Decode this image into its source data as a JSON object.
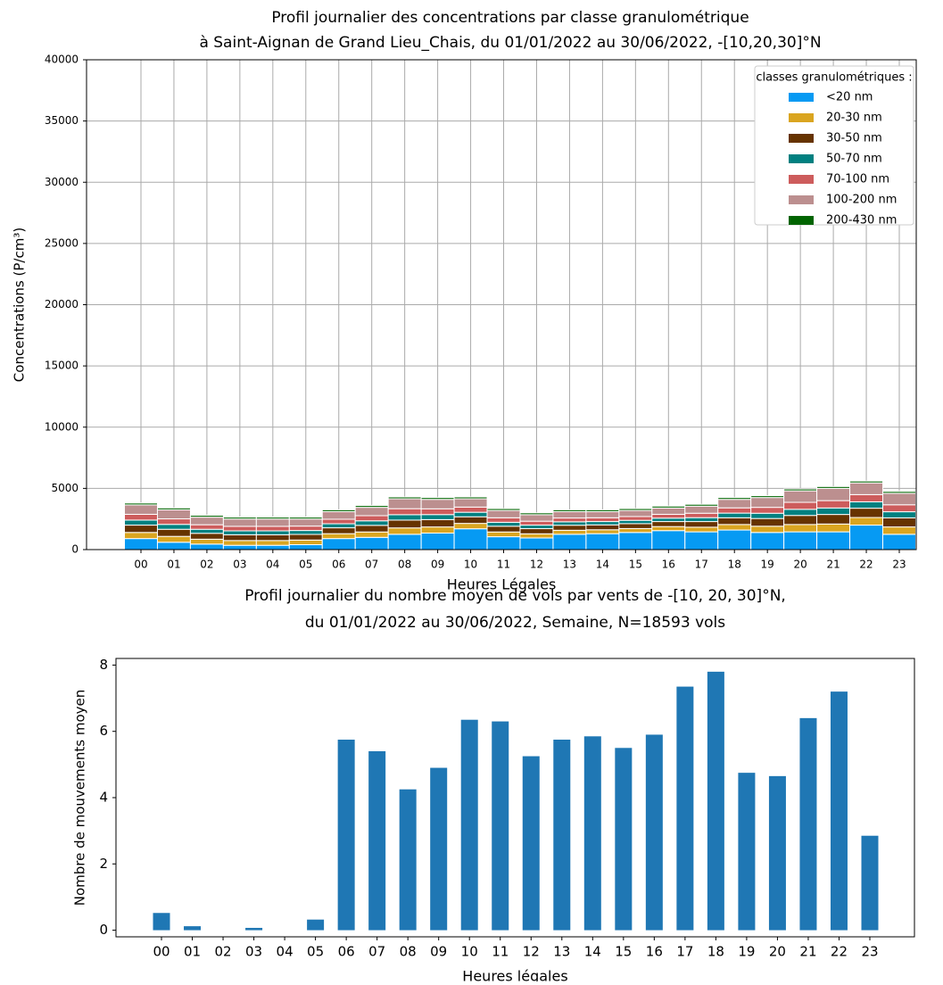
{
  "chart_data": [
    {
      "type": "stacked-bar",
      "title": [
        "Profil journalier des concentrations par classe granulométrique",
        "à Saint-Aignan de Grand Lieu_Chais, du 01/01/2022 au 30/06/2022, -[10,20,30]°N"
      ],
      "x_label": "Heures Légales",
      "y_label": "Concentrations (P/cm³)",
      "categories": [
        "00",
        "01",
        "02",
        "03",
        "04",
        "05",
        "06",
        "07",
        "08",
        "09",
        "10",
        "11",
        "12",
        "13",
        "14",
        "15",
        "16",
        "17",
        "18",
        "19",
        "20",
        "21",
        "22",
        "23"
      ],
      "legend_title": "classes granulométriques :",
      "legend": "upper right",
      "grid": true,
      "ylim": [
        0,
        40000
      ],
      "yticks": [
        0,
        5000,
        10000,
        15000,
        20000,
        25000,
        30000,
        35000,
        40000
      ],
      "series": [
        {
          "name": "<20 nm",
          "color": "#069af3",
          "values": [
            900,
            600,
            450,
            350,
            350,
            400,
            900,
            1000,
            1250,
            1350,
            1700,
            1050,
            950,
            1250,
            1300,
            1400,
            1550,
            1450,
            1600,
            1400,
            1450,
            1450,
            2000,
            1250
          ]
        },
        {
          "name": "20-30 nm",
          "color": "#daa520",
          "values": [
            500,
            480,
            400,
            390,
            390,
            380,
            400,
            440,
            520,
            500,
            440,
            390,
            340,
            330,
            320,
            320,
            330,
            380,
            450,
            510,
            600,
            640,
            620,
            600
          ]
        },
        {
          "name": "30-50 nm",
          "color": "#663300",
          "values": [
            600,
            580,
            480,
            470,
            470,
            460,
            480,
            540,
            640,
            600,
            540,
            470,
            420,
            410,
            400,
            400,
            410,
            460,
            550,
            630,
            740,
            780,
            760,
            740
          ]
        },
        {
          "name": "50-70 nm",
          "color": "#008080",
          "values": [
            410,
            400,
            330,
            320,
            320,
            320,
            330,
            370,
            440,
            410,
            370,
            320,
            290,
            280,
            270,
            270,
            280,
            320,
            380,
            430,
            500,
            530,
            520,
            500
          ]
        },
        {
          "name": "70-100 nm",
          "color": "#cd5c5c",
          "values": [
            470,
            450,
            370,
            370,
            370,
            360,
            370,
            420,
            490,
            470,
            420,
            370,
            320,
            310,
            310,
            310,
            310,
            360,
            430,
            480,
            570,
            600,
            590,
            570
          ]
        },
        {
          "name": "100-200 nm",
          "color": "#bc8f8f",
          "values": [
            770,
            740,
            620,
            600,
            600,
            580,
            620,
            680,
            810,
            770,
            680,
            600,
            530,
            520,
            500,
            500,
            520,
            580,
            690,
            800,
            940,
            1000,
            960,
            940
          ]
        },
        {
          "name": "200-430 nm",
          "color": "#006400",
          "values": [
            150,
            150,
            150,
            150,
            150,
            150,
            150,
            150,
            150,
            150,
            150,
            150,
            150,
            150,
            150,
            150,
            150,
            150,
            150,
            150,
            150,
            150,
            150,
            150
          ]
        }
      ]
    },
    {
      "type": "bar",
      "title": [
        "Profil journalier du nombre moyen de vols par vents de -[10, 20, 30]°N,",
        "du 01/01/2022 au 30/06/2022, Semaine, N=18593 vols"
      ],
      "x_label": "Heures légales",
      "y_label": "Nombre de mouvements moyen",
      "categories": [
        "00",
        "01",
        "02",
        "03",
        "04",
        "05",
        "06",
        "07",
        "08",
        "09",
        "10",
        "11",
        "12",
        "13",
        "14",
        "15",
        "16",
        "17",
        "18",
        "19",
        "20",
        "21",
        "22",
        "23"
      ],
      "color": "#1f77b4",
      "grid": false,
      "ylim": [
        -0.2,
        8.2
      ],
      "yticks": [
        0,
        2,
        4,
        6,
        8
      ],
      "values": [
        0.52,
        0.12,
        0,
        0.07,
        0,
        0.32,
        5.75,
        5.4,
        4.25,
        4.9,
        6.35,
        6.3,
        5.25,
        5.75,
        5.85,
        5.5,
        5.9,
        7.35,
        7.8,
        4.75,
        4.65,
        6.4,
        7.2,
        2.85
      ]
    }
  ]
}
